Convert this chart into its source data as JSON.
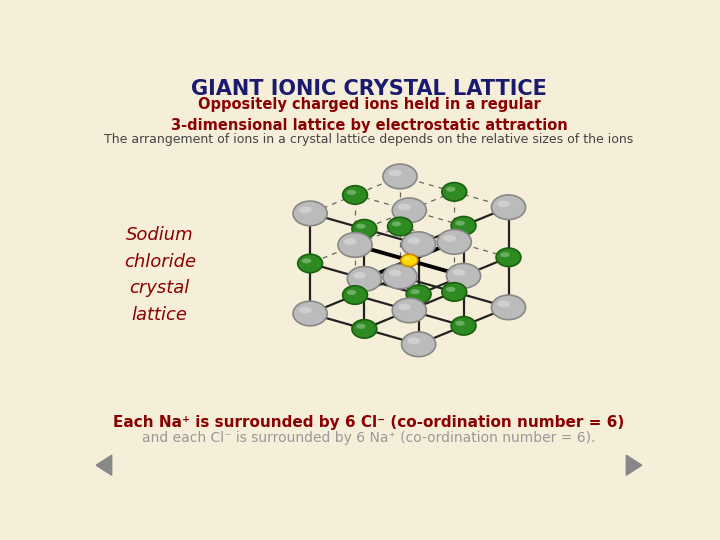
{
  "title": "GIANT IONIC CRYSTAL LATTICE",
  "subtitle": "Oppositely charged ions held in a regular\n3-dimensional lattice by electrostatic attraction",
  "line3": "The arrangement of ions in a crystal lattice depends on the relative sizes of the ions",
  "label_text": "Sodium\nchloride\ncrystal\nlattice",
  "bottom_line1": "Each Na⁺ is surrounded by 6 Cl⁻ (co-ordination number = 6)",
  "bottom_line2": "and each Cl⁻ is surrounded by 6 Na⁺ (co-ordination number = 6).",
  "bg_color": "#f5eed8",
  "title_color": "#1a1a6e",
  "subtitle_color": "#8b0000",
  "line3_color": "#444444",
  "label_color": "#8b0000",
  "bottom1_color": "#8b0000",
  "bottom2_color": "#999999",
  "cl_color": "#bbbbbb",
  "na_color": "#2e8b22",
  "center_color": "#ffd700",
  "lattice_line_color": "#222222",
  "dashed_line_color": "#666666",
  "arrow_color": "#888888"
}
